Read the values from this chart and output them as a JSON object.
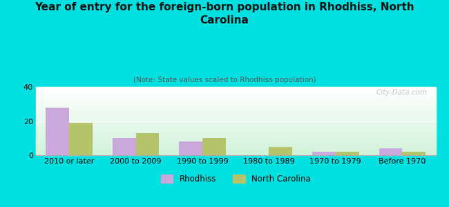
{
  "title": "Year of entry for the foreign-born population in Rhodhiss, North\nCarolina",
  "subtitle": "(Note: State values scaled to Rhodhiss population)",
  "categories": [
    "2010 or later",
    "2000 to 2009",
    "1990 to 1999",
    "1980 to 1989",
    "1970 to 1979",
    "Before 1970"
  ],
  "rhodhiss": [
    28,
    10,
    8,
    0,
    2,
    4
  ],
  "north_carolina": [
    19,
    13,
    10,
    5,
    2,
    2
  ],
  "rhodhiss_color": "#c9a8dc",
  "nc_color": "#b5c46a",
  "background_outer": "#00e0e0",
  "ylim": [
    0,
    40
  ],
  "yticks": [
    0,
    20,
    40
  ],
  "bar_width": 0.35,
  "legend_rhodhiss": "Rhodhiss",
  "legend_nc": "North Carolina",
  "watermark": "City-Data.com"
}
